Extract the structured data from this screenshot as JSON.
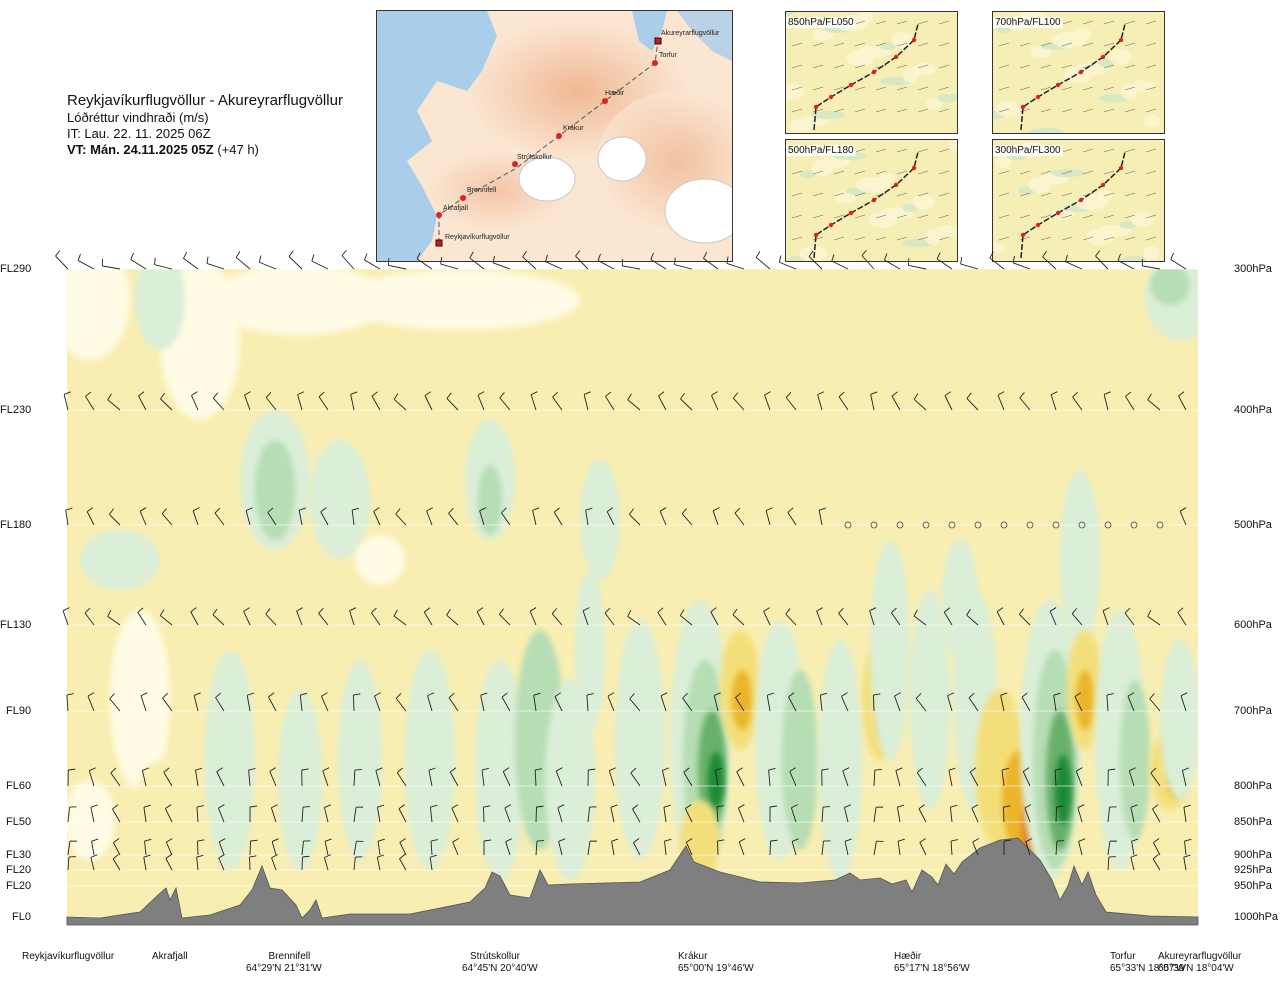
{
  "header": {
    "route": "Reykjavíkurflugvöllur - Akureyrarflugvöllur",
    "quantity": "Lóðréttur vindhraði (m/s)",
    "issue_time": "IT: Lau. 22. 11. 2025 06Z",
    "valid_time": "VT: Mán. 24.11.2025 05Z",
    "lead": "(+47 h)"
  },
  "route_map": {
    "points": [
      {
        "label": "Akureyrarflugvöllur",
        "kind": "airport"
      },
      {
        "label": "Torfur",
        "kind": "waypoint"
      },
      {
        "label": "Hæðir",
        "kind": "waypoint"
      },
      {
        "label": "Krákur",
        "kind": "waypoint"
      },
      {
        "label": "Strútskollur",
        "kind": "waypoint"
      },
      {
        "label": "Brennifell",
        "kind": "waypoint"
      },
      {
        "label": "Akrafjall",
        "kind": "waypoint"
      },
      {
        "label": "Reykjavíkurflugvöllur",
        "kind": "airport"
      }
    ]
  },
  "mini_maps": [
    {
      "label": "850hPa/FL050"
    },
    {
      "label": "700hPa/FL100"
    },
    {
      "label": "500hPa/FL180"
    },
    {
      "label": "300hPa/FL300"
    }
  ],
  "chart_data": {
    "type": "heatmap",
    "title": "Reykjavíkurflugvöllur - Akureyrarflugvöllur",
    "quantity": "Lóðréttur vindhraði (m/s)",
    "y_levels": [
      {
        "fl": "FL290",
        "hpa": "300hPa"
      },
      {
        "fl": "FL230",
        "hpa": "400hPa"
      },
      {
        "fl": "FL180",
        "hpa": "500hPa"
      },
      {
        "fl": "FL130",
        "hpa": "600hPa"
      },
      {
        "fl": "FL90",
        "hpa": "700hPa"
      },
      {
        "fl": "FL60",
        "hpa": "800hPa"
      },
      {
        "fl": "FL50",
        "hpa": "850hPa"
      },
      {
        "fl": "FL30",
        "hpa": "900hPa"
      },
      {
        "fl": "FL20",
        "hpa": "925hPa"
      },
      {
        "fl": "FL20",
        "hpa": "950hPa"
      },
      {
        "fl": "FL0",
        "hpa": "1000hPa"
      }
    ],
    "x_waypoints": [
      {
        "name": "Reykjavíkurflugvöllur",
        "coord": ""
      },
      {
        "name": "Akrafjall",
        "coord": ""
      },
      {
        "name": "Brennifell",
        "coord": "64°29'N 21°31'W"
      },
      {
        "name": "Strútskollur",
        "coord": "64°45'N 20°40'W"
      },
      {
        "name": "Krákur",
        "coord": "65°00'N 19°46'W"
      },
      {
        "name": "Hæðir",
        "coord": "65°17'N 18°56'W"
      },
      {
        "name": "Torfur",
        "coord": "65°33'N 18°07'W"
      },
      {
        "name": "Akureyrarflugvöllur",
        "coord": "65°39'N 18°04'W"
      }
    ],
    "colors": {
      "downdraft_weak": "#f6efb0",
      "downdraft_mod": "#f3df7a",
      "downdraft_strong": "#ecb42a",
      "downdraft_severe": "#e07d1c",
      "neutral": "#fffbe4",
      "updraft_weak": "#daeed8",
      "updraft_mod": "#b6ddb4",
      "updraft_strong": "#67b16b",
      "updraft_severe": "#1f8a35",
      "terrain": "#7f7f7f",
      "background": "#f8eeb2"
    }
  }
}
